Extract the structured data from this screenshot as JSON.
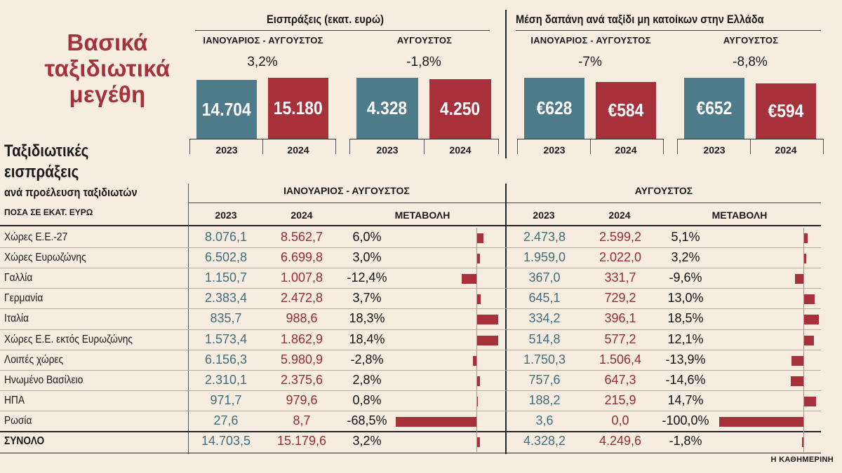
{
  "title": "Βασικά ταξιδιωτικά μεγέθη",
  "top": {
    "receipts": {
      "title": "Εισπράξεις (εκατ. ευρώ)",
      "panels": [
        {
          "period": "ΙΑΝΟΥΑΡΙΟΣ - ΑΥΓΟΥΣΤΟΣ",
          "change": "3,2%",
          "v2023": "14.704",
          "v2024": "15.180"
        },
        {
          "period": "ΑΥΓΟΥΣΤΟΣ",
          "change": "-1,8%",
          "v2023": "4.328",
          "v2024": "4.250"
        }
      ]
    },
    "spending": {
      "title": "Μέση δαπάνη ανά ταξίδι μη κατοίκων στην Ελλάδα",
      "panels": [
        {
          "period": "ΙΑΝΟΥΑΡΙΟΣ - ΑΥΓΟΥΣΤΟΣ",
          "change": "-7%",
          "v2023": "€628",
          "v2024": "€584"
        },
        {
          "period": "ΑΥΓΟΥΣΤΟΣ",
          "change": "-8,8%",
          "v2023": "€652",
          "v2024": "€594"
        }
      ]
    },
    "year_a": "2023",
    "year_b": "2024"
  },
  "table": {
    "title_line1": "Ταξιδιωτικές",
    "title_line2": "εισπράξεις",
    "subtitle": "ανά προέλευση ταξιδιωτών",
    "note": "ΠΟΣΑ ΣΕ ΕΚΑΤ. ΕΥΡΩ",
    "period1": "ΙΑΝΟΥΑΡΙΟΣ - ΑΥΓΟΥΣΤΟΣ",
    "period2": "ΑΥΓΟΥΣΤΟΣ",
    "col_2023": "2023",
    "col_2024": "2024",
    "col_change": "ΜΕΤΑΒΟΛΗ",
    "rows": [
      {
        "name": "Χώρες Ε.Ε.-27",
        "a23": "8.076,1",
        "a24": "8.562,7",
        "ach": "6,0%",
        "b23": "2.473,8",
        "b24": "2.599,2",
        "bch": "5,1%"
      },
      {
        "name": "Χώρες Ευρωζώνης",
        "a23": "6.502,8",
        "a24": "6.699,8",
        "ach": "3,0%",
        "b23": "1.959,0",
        "b24": "2.022,0",
        "bch": "3,2%"
      },
      {
        "name": "Γαλλία",
        "a23": "1.150,7",
        "a24": "1.007,8",
        "ach": "-12,4%",
        "b23": "367,0",
        "b24": "331,7",
        "bch": "-9,6%"
      },
      {
        "name": "Γερμανία",
        "a23": "2.383,4",
        "a24": "2.472,8",
        "ach": "3,7%",
        "b23": "645,1",
        "b24": "729,2",
        "bch": "13,0%"
      },
      {
        "name": "Ιταλία",
        "a23": "835,7",
        "a24": "988,6",
        "ach": "18,3%",
        "b23": "334,2",
        "b24": "396,1",
        "bch": "18,5%"
      },
      {
        "name": "Χώρες Ε.Ε. εκτός Ευρωζώνης",
        "a23": "1.573,4",
        "a24": "1.862,9",
        "ach": "18,4%",
        "b23": "514,8",
        "b24": "577,2",
        "bch": "12,1%"
      },
      {
        "name": "Λοιπές χώρες",
        "a23": "6.156,3",
        "a24": "5.980,9",
        "ach": "-2,8%",
        "b23": "1.750,3",
        "b24": "1.506,4",
        "bch": "-13,9%"
      },
      {
        "name": "Ηνωμένο Βασίλειο",
        "a23": "2.310,1",
        "a24": "2.375,6",
        "ach": "2,8%",
        "b23": "757,6",
        "b24": "647,3",
        "bch": "-14,6%"
      },
      {
        "name": "ΗΠΑ",
        "a23": "971,7",
        "a24": "979,6",
        "ach": "0,8%",
        "b23": "188,2",
        "b24": "215,9",
        "bch": "14,7%"
      },
      {
        "name": "Ρωσία",
        "a23": "27,6",
        "a24": "8,7",
        "ach": "-68,5%",
        "b23": "3,6",
        "b24": "0,0",
        "bch": "-100,0%"
      },
      {
        "name": "ΣΥΝΟΛΟ",
        "a23": "14.703,5",
        "a24": "15.179,6",
        "ach": "3,2%",
        "b23": "4.328,2",
        "b24": "4.249,6",
        "bch": "-1,8%"
      }
    ]
  },
  "source": "Η ΚΑΘΗΜΕΡΙΝΗ",
  "colors": {
    "teal": "#4d7b89",
    "red": "#a7313a",
    "background": "#f7ece0"
  },
  "chart_data": [
    {
      "type": "bar",
      "title": "Εισπράξεις (εκατ. ευρώ)",
      "subtitle": "ΙΑΝΟΥΑΡΙΟΣ - ΑΥΓΟΥΣΤΟΣ",
      "categories": [
        "2023",
        "2024"
      ],
      "values": [
        14704,
        15180
      ],
      "annotation": "3,2%"
    },
    {
      "type": "bar",
      "title": "Εισπράξεις (εκατ. ευρώ)",
      "subtitle": "ΑΥΓΟΥΣΤΟΣ",
      "categories": [
        "2023",
        "2024"
      ],
      "values": [
        4328,
        4250
      ],
      "annotation": "-1,8%"
    },
    {
      "type": "bar",
      "title": "Μέση δαπάνη ανά ταξίδι μη κατοίκων στην Ελλάδα",
      "subtitle": "ΙΑΝΟΥΑΡΙΟΣ - ΑΥΓΟΥΣΤΟΣ",
      "categories": [
        "2023",
        "2024"
      ],
      "values": [
        628,
        584
      ],
      "annotation": "-7%"
    },
    {
      "type": "bar",
      "title": "Μέση δαπάνη ανά ταξίδι μη κατοίκων στην Ελλάδα",
      "subtitle": "ΑΥΓΟΥΣΤΟΣ",
      "categories": [
        "2023",
        "2024"
      ],
      "values": [
        652,
        594
      ],
      "annotation": "-8,8%"
    },
    {
      "type": "table",
      "title": "Ταξιδιωτικές εισπράξεις ανά προέλευση ταξιδιωτών",
      "note": "ΠΟΣΑ ΣΕ ΕΚΑΤ. ΕΥΡΩ",
      "change_jan_aug": [
        6.0,
        3.0,
        -12.4,
        3.7,
        18.3,
        18.4,
        -2.8,
        2.8,
        0.8,
        -68.5,
        3.2
      ],
      "change_aug": [
        5.1,
        3.2,
        -9.6,
        13.0,
        18.5,
        12.1,
        -13.9,
        -14.6,
        14.7,
        -100.0,
        -1.8
      ]
    }
  ]
}
